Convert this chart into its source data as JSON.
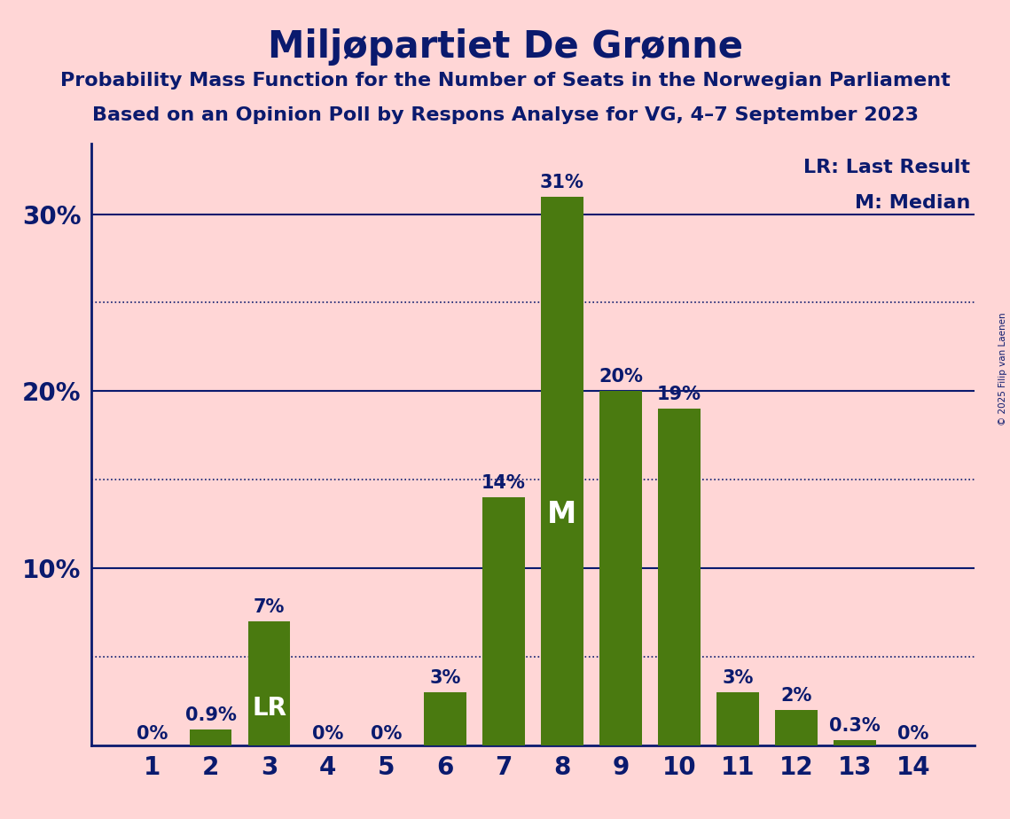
{
  "title": "Miljøpartiet De Grønne",
  "subtitle1": "Probability Mass Function for the Number of Seats in the Norwegian Parliament",
  "subtitle2": "Based on an Opinion Poll by Respons Analyse for VG, 4–7 September 2023",
  "copyright": "© 2025 Filip van Laenen",
  "categories": [
    1,
    2,
    3,
    4,
    5,
    6,
    7,
    8,
    9,
    10,
    11,
    12,
    13,
    14
  ],
  "values": [
    0.0,
    0.9,
    7.0,
    0.0,
    0.0,
    3.0,
    14.0,
    31.0,
    20.0,
    19.0,
    3.0,
    2.0,
    0.3,
    0.0
  ],
  "bar_color": "#4a7a10",
  "background_color": "#FFD6D6",
  "text_color": "#0a1a6e",
  "grid_solid_color": "#0a1a6e",
  "grid_dotted_color": "#0a1a6e",
  "lr_bar": 3,
  "median_bar": 8,
  "legend_lr": "LR: Last Result",
  "legend_m": "M: Median",
  "ylim": [
    0,
    34
  ],
  "yticks_solid": [
    10,
    20,
    30
  ],
  "yticks_dotted": [
    5,
    15,
    25
  ],
  "bar_labels": [
    "0%",
    "0.9%",
    "7%",
    "0%",
    "0%",
    "3%",
    "14%",
    "31%",
    "20%",
    "19%",
    "3%",
    "2%",
    "0.3%",
    "0%"
  ],
  "bar_label_color_default": "#0a1a6e",
  "bar_label_color_white": "#ffffff",
  "white_label_bars": [
    3,
    8
  ],
  "title_fontsize": 30,
  "subtitle_fontsize": 16,
  "tick_fontsize": 20,
  "label_fontsize": 15,
  "legend_fontsize": 16
}
